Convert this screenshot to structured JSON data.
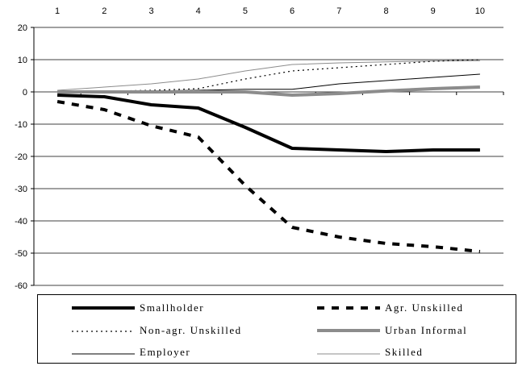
{
  "chart_data": {
    "type": "line",
    "x": [
      1,
      2,
      3,
      4,
      5,
      6,
      7,
      8,
      9,
      10
    ],
    "ylim": [
      -60,
      20
    ],
    "yticks": [
      20,
      10,
      0,
      -10,
      -20,
      -30,
      -40,
      -50,
      -60
    ],
    "grid": true,
    "legend_position": "bottom",
    "xaxis_position": "top",
    "series": [
      {
        "name": "Smallholder",
        "style": "thick-solid",
        "color": "#000000",
        "values": [
          -1,
          -1.5,
          -4,
          -5,
          -11,
          -17.5,
          -18,
          -18.5,
          -18,
          -18
        ]
      },
      {
        "name": "Agr. Unskilled",
        "style": "thick-dashed",
        "color": "#000000",
        "values": [
          -3,
          -5.5,
          -10.5,
          -14,
          -29,
          -42,
          -45,
          -47,
          -48,
          -49.5
        ]
      },
      {
        "name": "Non-agr. Unskilled",
        "style": "dotted",
        "color": "#000000",
        "values": [
          0,
          0.2,
          0.5,
          1,
          4,
          6.5,
          7.5,
          8.5,
          9.5,
          10
        ]
      },
      {
        "name": "Urban Informal",
        "style": "thick-gray",
        "color": "#8c8c8c",
        "values": [
          0,
          0,
          0,
          0,
          0,
          -1,
          -0.5,
          0.3,
          1,
          1.5
        ]
      },
      {
        "name": "Employer",
        "style": "thin-solid",
        "color": "#000000",
        "values": [
          0,
          0.2,
          0.3,
          0.5,
          0.8,
          0.8,
          2.5,
          3.5,
          4.5,
          5.5
        ]
      },
      {
        "name": "Skilled",
        "style": "thin-gray",
        "color": "#8c8c8c",
        "values": [
          0.5,
          1.5,
          2.5,
          4,
          6.5,
          8.5,
          9,
          9.3,
          9.6,
          9.7
        ]
      }
    ]
  },
  "legend": [
    {
      "label": "Smallholder",
      "icon": "thick-solid-line"
    },
    {
      "label": "Agr. Unskilled",
      "icon": "thick-dashed-line"
    },
    {
      "label": "Non-agr. Unskilled",
      "icon": "dotted-line"
    },
    {
      "label": "Urban Informal",
      "icon": "thick-gray-line"
    },
    {
      "label": "Employer",
      "icon": "thin-solid-line"
    },
    {
      "label": "Skilled",
      "icon": "thin-gray-line"
    }
  ]
}
